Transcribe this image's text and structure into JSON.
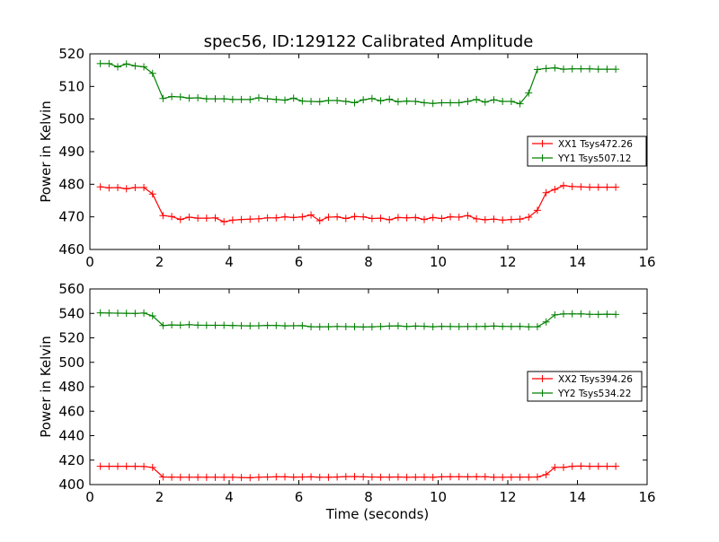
{
  "figure_title": "spec56, ID:129122 Calibrated Amplitude",
  "colors": {
    "xx": "#ff0000",
    "yy": "#008000"
  },
  "chart_data": [
    {
      "type": "line",
      "title": "spec56, ID:129122 Calibrated Amplitude",
      "xlabel": "",
      "ylabel": "Power in Kelvin",
      "xlim": [
        0,
        16
      ],
      "ylim": [
        460,
        520
      ],
      "xticks": [
        "0",
        "2",
        "4",
        "6",
        "8",
        "10",
        "12",
        "14",
        "16"
      ],
      "yticks": [
        "460",
        "470",
        "480",
        "490",
        "500",
        "510",
        "520"
      ],
      "grid": false,
      "legend_position": "center-right",
      "x": [
        0.3,
        0.55,
        0.8,
        1.05,
        1.3,
        1.55,
        1.8,
        2.1,
        2.35,
        2.6,
        2.85,
        3.1,
        3.35,
        3.6,
        3.85,
        4.1,
        4.35,
        4.6,
        4.85,
        5.1,
        5.35,
        5.6,
        5.85,
        6.1,
        6.35,
        6.6,
        6.85,
        7.1,
        7.35,
        7.6,
        7.85,
        8.1,
        8.35,
        8.6,
        8.85,
        9.1,
        9.35,
        9.6,
        9.85,
        10.1,
        10.35,
        10.6,
        10.85,
        11.1,
        11.35,
        11.6,
        11.85,
        12.1,
        12.35,
        12.6,
        12.85,
        13.1,
        13.35,
        13.6,
        13.85,
        14.1,
        14.35,
        14.6,
        14.85,
        15.1
      ],
      "series": [
        {
          "name": "XX1 Tsys472.26",
          "color": "#ff0000",
          "values": [
            479.2,
            478.9,
            479.0,
            478.6,
            479.0,
            479.0,
            477.0,
            470.4,
            470.1,
            469.2,
            469.9,
            469.6,
            469.6,
            469.7,
            468.5,
            469.0,
            469.2,
            469.3,
            469.4,
            469.7,
            469.7,
            470.0,
            469.8,
            470.0,
            470.6,
            468.8,
            469.9,
            470.0,
            469.5,
            470.1,
            470.0,
            469.5,
            469.6,
            469.1,
            469.8,
            469.7,
            469.8,
            469.2,
            469.8,
            469.5,
            470.0,
            469.9,
            470.4,
            469.4,
            469.1,
            469.3,
            469.0,
            469.2,
            469.3,
            469.9,
            472.0,
            477.4,
            478.4,
            479.6,
            479.3,
            479.2,
            479.1,
            479.1,
            479.1,
            479.1
          ]
        },
        {
          "name": "YY1 Tsys507.12",
          "color": "#008000",
          "values": [
            517.0,
            517.0,
            516.0,
            516.9,
            516.3,
            516.0,
            514.0,
            506.3,
            506.9,
            506.8,
            506.4,
            506.5,
            506.2,
            506.2,
            506.2,
            506.0,
            506.0,
            506.0,
            506.5,
            506.2,
            506.0,
            505.8,
            506.4,
            505.5,
            505.4,
            505.3,
            505.7,
            505.7,
            505.4,
            505.0,
            505.9,
            506.3,
            505.6,
            506.1,
            505.3,
            505.5,
            505.4,
            505.0,
            504.8,
            505.0,
            505.0,
            505.0,
            505.4,
            506.0,
            505.2,
            505.9,
            505.4,
            505.4,
            504.7,
            508.0,
            515.2,
            515.5,
            515.7,
            515.3,
            515.4,
            515.4,
            515.4,
            515.3,
            515.3,
            515.3
          ]
        }
      ]
    },
    {
      "type": "line",
      "title": "",
      "xlabel": "Time (seconds)",
      "ylabel": "Power in Kelvin",
      "xlim": [
        0,
        16
      ],
      "ylim": [
        400,
        560
      ],
      "xticks": [
        "0",
        "2",
        "4",
        "6",
        "8",
        "10",
        "12",
        "14",
        "16"
      ],
      "yticks": [
        "400",
        "420",
        "440",
        "460",
        "480",
        "500",
        "520",
        "540",
        "560"
      ],
      "grid": false,
      "legend_position": "center-right",
      "x": [
        0.3,
        0.55,
        0.8,
        1.05,
        1.3,
        1.55,
        1.8,
        2.1,
        2.35,
        2.6,
        2.85,
        3.1,
        3.35,
        3.6,
        3.85,
        4.1,
        4.35,
        4.6,
        4.85,
        5.1,
        5.35,
        5.6,
        5.85,
        6.1,
        6.35,
        6.6,
        6.85,
        7.1,
        7.35,
        7.6,
        7.85,
        8.1,
        8.35,
        8.6,
        8.85,
        9.1,
        9.35,
        9.6,
        9.85,
        10.1,
        10.35,
        10.6,
        10.85,
        11.1,
        11.35,
        11.6,
        11.85,
        12.1,
        12.35,
        12.6,
        12.85,
        13.1,
        13.35,
        13.6,
        13.85,
        14.1,
        14.35,
        14.6,
        14.85,
        15.1
      ],
      "series": [
        {
          "name": "XX2 Tsys394.26",
          "color": "#ff0000",
          "values": [
            415.0,
            415.0,
            415.0,
            415.0,
            415.0,
            414.8,
            414.0,
            406.2,
            406.1,
            406.0,
            406.0,
            406.0,
            406.0,
            406.0,
            406.0,
            406.0,
            405.8,
            405.6,
            406.0,
            406.2,
            406.3,
            406.3,
            406.1,
            406.2,
            406.3,
            406.0,
            406.0,
            406.2,
            406.5,
            406.5,
            406.3,
            406.2,
            406.1,
            406.1,
            406.2,
            406.0,
            406.1,
            406.1,
            406.0,
            406.3,
            406.4,
            406.4,
            406.3,
            406.4,
            406.4,
            406.0,
            406.0,
            406.1,
            406.1,
            406.1,
            406.2,
            408.2,
            414.0,
            414.0,
            415.0,
            415.1,
            415.0,
            415.0,
            415.0,
            415.0
          ]
        },
        {
          "name": "YY2 Tsys534.22",
          "color": "#008000",
          "values": [
            540.5,
            540.3,
            540.2,
            540.1,
            540.0,
            540.3,
            538.0,
            530.1,
            530.6,
            530.4,
            530.8,
            530.4,
            530.3,
            530.3,
            530.3,
            530.1,
            529.9,
            529.8,
            529.9,
            530.2,
            530.1,
            529.8,
            529.9,
            530.0,
            529.1,
            529.0,
            529.1,
            529.3,
            529.2,
            529.1,
            528.9,
            529.0,
            529.3,
            529.6,
            529.8,
            529.3,
            529.6,
            529.5,
            529.1,
            529.4,
            529.3,
            529.2,
            529.3,
            529.3,
            529.4,
            529.6,
            529.4,
            529.3,
            529.4,
            529.0,
            529.1,
            533.0,
            538.8,
            539.6,
            539.6,
            539.6,
            539.3,
            539.2,
            539.4,
            539.2
          ]
        }
      ]
    }
  ]
}
